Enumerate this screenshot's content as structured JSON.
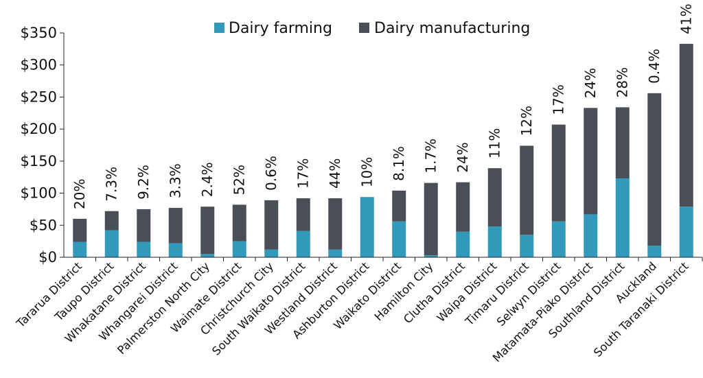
{
  "chart_data": {
    "type": "bar",
    "stacked": true,
    "title": "",
    "xlabel": "",
    "ylabel": "",
    "ylim": [
      0,
      350
    ],
    "yticks": [
      0,
      50,
      100,
      150,
      200,
      250,
      300,
      350
    ],
    "ytick_labels": [
      "$0",
      "$50",
      "$100",
      "$150",
      "$200",
      "$250",
      "$300",
      "$350"
    ],
    "grid": false,
    "legend_position": "top",
    "categories": [
      "Tararua District",
      "Taupo District",
      "Whakatane District",
      "Whangarei District",
      "Palmerston North City",
      "Waimate District",
      "Christchurch City",
      "South Waikato District",
      "Westland District",
      "Ashburton District",
      "Waikato District",
      "Hamilton City",
      "Clutha District",
      "Waipa District",
      "Timaru District",
      "Selwyn District",
      "Matamata-Piako District",
      "Southland District",
      "Auckland",
      "South Taranaki District"
    ],
    "series": [
      {
        "name": "Dairy farming",
        "color": "#3399bb",
        "values": [
          24,
          42,
          24,
          22,
          5,
          25,
          12,
          41,
          12,
          94,
          56,
          3,
          40,
          48,
          35,
          56,
          67,
          123,
          18,
          79
        ]
      },
      {
        "name": "Dairy manufacturing",
        "color": "#4a4f57",
        "values": [
          36,
          30,
          51,
          55,
          74,
          57,
          77,
          51,
          80,
          0,
          48,
          113,
          77,
          91,
          139,
          151,
          166,
          111,
          238,
          254
        ]
      }
    ],
    "annotations": [
      "20%",
      "7.3%",
      "9.2%",
      "3.3%",
      "2.4%",
      "52%",
      "0.6%",
      "17%",
      "44%",
      "10%",
      "8.1%",
      "1.7%",
      "24%",
      "11%",
      "12%",
      "17%",
      "24%",
      "28%",
      "0.4%",
      "41%"
    ]
  }
}
